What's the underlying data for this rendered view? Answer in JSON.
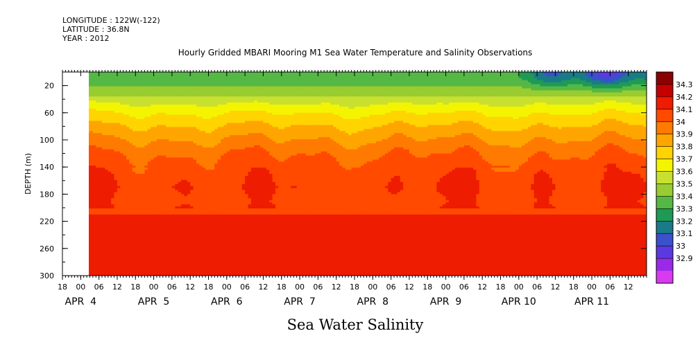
{
  "header": {
    "longitude": "LONGITUDE : 122W(-122)",
    "latitude": "LATITUDE : 36.8N",
    "year": "YEAR : 2012",
    "title": "Hourly Gridded MBARI Mooring M1 Sea Water Temperature and Salinity Observations"
  },
  "chart_data": {
    "type": "heatmap",
    "title": "Hourly Gridded MBARI Mooring M1 Sea Water Temperature and Salinity Observations",
    "xlabel": "Sea Water Salinity",
    "ylabel": "DEPTH (m)",
    "x_start": "APR 3 18:00",
    "data_start": "APR 4 00:00",
    "x_end": "APR 11 18:00",
    "hour_ticks": [
      "18",
      "00",
      "06",
      "12",
      "18",
      "00",
      "06",
      "12",
      "18",
      "00",
      "06",
      "12",
      "18",
      "00",
      "06",
      "12",
      "18",
      "00",
      "06",
      "12",
      "18",
      "00",
      "06",
      "12",
      "18",
      "00",
      "06",
      "12",
      "18",
      "00",
      "06",
      "12"
    ],
    "date_labels": [
      {
        "text": "APR  4",
        "day": 4
      },
      {
        "text": "APR  5",
        "day": 5
      },
      {
        "text": "APR  6",
        "day": 6
      },
      {
        "text": "APR  7",
        "day": 7
      },
      {
        "text": "APR  8",
        "day": 8
      },
      {
        "text": "APR  9",
        "day": 9
      },
      {
        "text": "APR 10",
        "day": 10
      },
      {
        "text": "APR 11",
        "day": 11
      }
    ],
    "ylim": [
      300,
      0
    ],
    "y_ticks": [
      20,
      60,
      100,
      140,
      180,
      220,
      260,
      300
    ],
    "colorbar": {
      "levels": [
        "34.3",
        "34.2",
        "34.1",
        "34",
        "33.9",
        "33.8",
        "33.7",
        "33.6",
        "33.5",
        "33.4",
        "33.3",
        "33.2",
        "33.1",
        "33",
        "32.9"
      ],
      "colors": [
        "#8b0000",
        "#c40000",
        "#ee1c00",
        "#ff4a00",
        "#ff7a00",
        "#ffa500",
        "#ffd400",
        "#f4f400",
        "#c8e030",
        "#98cc30",
        "#55b845",
        "#1e9a55",
        "#1a7a88",
        "#3a50cc",
        "#5a3ae0",
        "#9a2ae8",
        "#d83af0"
      ]
    },
    "depth_profile": [
      {
        "depth": 10,
        "salinity": 33.42
      },
      {
        "depth": 25,
        "salinity": 33.53
      },
      {
        "depth": 40,
        "salinity": 33.64
      },
      {
        "depth": 55,
        "salinity": 33.76
      },
      {
        "depth": 70,
        "salinity": 33.85
      },
      {
        "depth": 85,
        "salinity": 33.93
      },
      {
        "depth": 100,
        "salinity": 34.0
      },
      {
        "depth": 115,
        "salinity": 34.07
      },
      {
        "depth": 130,
        "salinity": 34.12
      },
      {
        "depth": 150,
        "salinity": 34.17
      },
      {
        "depth": 170,
        "salinity": 34.19
      },
      {
        "depth": 190,
        "salinity": 34.17
      },
      {
        "depth": 210,
        "salinity": 34.2
      },
      {
        "depth": 230,
        "salinity": 34.24
      },
      {
        "depth": 255,
        "salinity": 34.28
      },
      {
        "depth": 275,
        "salinity": 34.24
      },
      {
        "depth": 295,
        "salinity": 34.2
      }
    ],
    "fresh_surface_event": {
      "start": "APR 10 06:00",
      "end": "APR 11 18:00",
      "min_salinity": 33.05,
      "depth_range": [
        0,
        30
      ]
    }
  }
}
